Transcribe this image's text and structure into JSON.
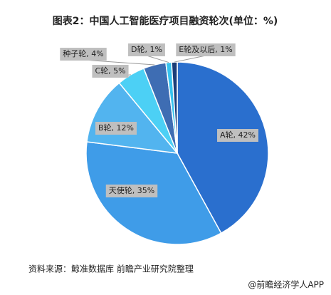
{
  "chart_data": {
    "type": "pie",
    "title": "图表2：中国人工智能医疗项目融资轮次(单位：%)",
    "categories": [
      "A轮",
      "天使轮",
      "B轮",
      "C轮",
      "种子轮",
      "D轮",
      "E轮及以后"
    ],
    "values": [
      42,
      35,
      12,
      5,
      4,
      1,
      1
    ],
    "value_labels": [
      "A轮, 42%",
      "天使轮, 35%",
      "B轮, 12%",
      "C轮, 5%",
      "种子轮, 4%",
      "D轮, 1%",
      "E轮及以后, 1%"
    ],
    "colors": [
      "#2a6fce",
      "#3f9ce8",
      "#52b4ef",
      "#4cd0f5",
      "#3e6db3",
      "#36c3ef",
      "#1c3d78"
    ],
    "source": "资料来源：鲸准数据库 前瞻产业研究院整理",
    "footer": "@前瞻经济学人APP"
  }
}
